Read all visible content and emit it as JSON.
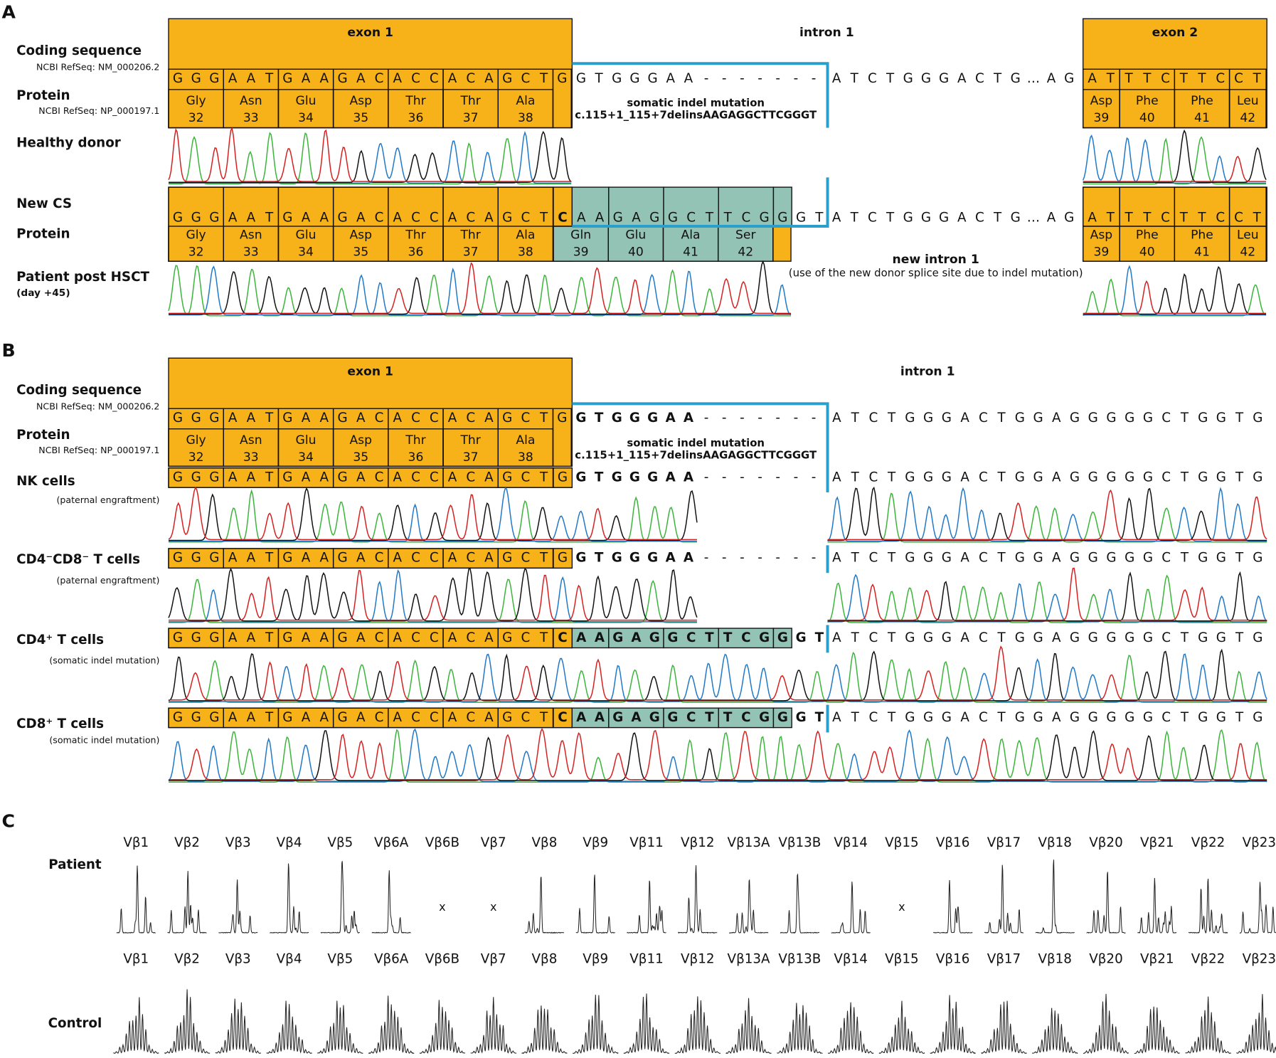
{
  "panel_a": {
    "label": "A",
    "exon1": "exon 1",
    "intron1": "intron 1",
    "exon2": "exon 2",
    "coding_label": "Coding sequence",
    "coding_ref": "NCBI RefSeq: NM_000206.2",
    "protein_label": "Protein",
    "protein_ref": "NCBI RefSeq: NP_000197.1",
    "codons": [
      "GGG",
      "AAT",
      "GAA",
      "GAC",
      "ACC",
      "ACA",
      "GCT",
      "G"
    ],
    "amino_acids": [
      {
        "name": "Gly",
        "position": 32
      },
      {
        "name": "Asn",
        "position": 33
      },
      {
        "name": "Glu",
        "position": 34
      },
      {
        "name": "Asp",
        "position": 35
      },
      {
        "name": "Thr",
        "position": 36
      },
      {
        "name": "Thr",
        "position": 37
      },
      {
        "name": "Ala",
        "position": 38
      }
    ],
    "intron_start": "GTGGGAA-------",
    "intron_end": "ATCTGGGACTG…AG",
    "exon2_codons": [
      "AT",
      "TTC",
      "TTC",
      "CT"
    ],
    "exon2_amino_acids": [
      {
        "name": "Asp",
        "position": 39
      },
      {
        "name": "Phe",
        "position": 40
      },
      {
        "name": "Phe",
        "position": 41
      },
      {
        "name": "Leu",
        "position": 42
      }
    ],
    "mutation_title": "somatic indel mutation",
    "mutation": "c.115+1_115+7delinsAAGAGGCTTCGGGT",
    "healthy_label": "Healthy donor",
    "new_cs_label": "New CS",
    "new_protein_label": "Protein",
    "new_switch": "C",
    "new_insert": [
      "AA",
      "GAG",
      "GCT",
      "TCG",
      "G"
    ],
    "new_after": "GT",
    "new_amino_acids": [
      {
        "name": "Gln",
        "position": 39
      },
      {
        "name": "Glu",
        "position": 40
      },
      {
        "name": "Ala",
        "position": 41
      },
      {
        "name": "Ser",
        "position": 42
      }
    ],
    "new_intron_title": "new intron 1",
    "new_intron_note": "(use of the new donor splice site due to indel mutation)",
    "patient_label": "Patient post HSCT",
    "patient_note": "(day +45)"
  },
  "panel_b": {
    "label": "B",
    "exon1": "exon 1",
    "intron1": "intron 1",
    "coding_label": "Coding sequence",
    "coding_ref": "NCBI RefSeq: NM_000206.2",
    "protein_label": "Protein",
    "protein_ref": "NCBI RefSeq: NP_000197.1",
    "codons": [
      "GGG",
      "AAT",
      "GAA",
      "GAC",
      "ACC",
      "ACA",
      "GCT",
      "G"
    ],
    "amino_acids": [
      {
        "name": "Gly",
        "position": 32
      },
      {
        "name": "Asn",
        "position": 33
      },
      {
        "name": "Glu",
        "position": 34
      },
      {
        "name": "Asp",
        "position": 35
      },
      {
        "name": "Thr",
        "position": 36
      },
      {
        "name": "Thr",
        "position": 37
      },
      {
        "name": "Ala",
        "position": 38
      }
    ],
    "intron_bold": "GTGGGAA",
    "intron_gap": "-------",
    "intron": "ATCTGGGACTGGAGGGGGCTGGTG",
    "mutation_title": "somatic indel mutation",
    "mutation": "c.115+1_115+7delinsAAGAGGCTTCGGGT",
    "rows": [
      {
        "label": "NK cells",
        "note": "(paternal engraftment)"
      },
      {
        "label": "CD4⁻CD8⁻ T cells",
        "note": "(paternal engraftment)"
      },
      {
        "label": "CD4⁺ T cells",
        "note": "(somatic indel mutation)",
        "switch": "C",
        "insert": [
          "AA",
          "GAG",
          "GCT",
          "TCG",
          "G"
        ],
        "after": "GT"
      },
      {
        "label": "CD8⁺ T cells",
        "note": "(somatic indel mutation)",
        "switch": "C",
        "insert": [
          "AA",
          "GAG",
          "GCT",
          "TCG",
          "G"
        ],
        "after": "GT"
      }
    ]
  },
  "panel_c": {
    "label": "C",
    "patient_label": "Patient",
    "control_label": "Control",
    "families": [
      "Vβ1",
      "Vβ2",
      "Vβ3",
      "Vβ4",
      "Vβ5",
      "Vβ6A",
      "Vβ6B",
      "Vβ7",
      "Vβ8",
      "Vβ9",
      "Vβ11",
      "Vβ12",
      "Vβ13A",
      "Vβ13B",
      "Vβ14",
      "Vβ15",
      "Vβ16",
      "Vβ17",
      "Vβ18",
      "Vβ20",
      "Vβ21",
      "Vβ22",
      "Vβ23"
    ],
    "patient_marks": [
      null,
      null,
      null,
      null,
      null,
      null,
      "x",
      "x",
      null,
      null,
      null,
      null,
      null,
      null,
      null,
      "x",
      null,
      null,
      null,
      null,
      null,
      null,
      null
    ]
  }
}
